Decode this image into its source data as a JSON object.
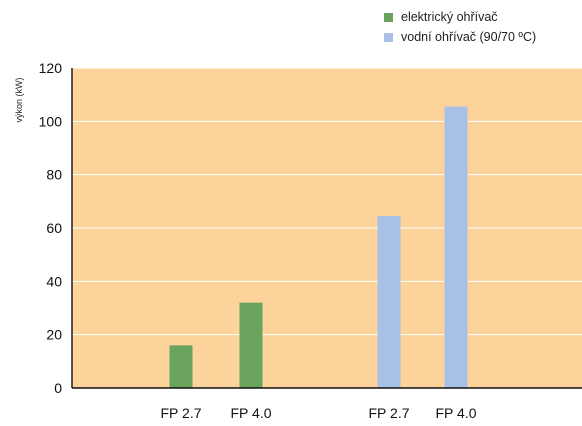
{
  "chart_data": {
    "type": "bar",
    "title": "",
    "ylabel": "výkon (kW)",
    "xlabel": "",
    "ylim": [
      0,
      120
    ],
    "yticks": [
      0,
      20,
      40,
      60,
      80,
      100,
      120
    ],
    "grid": true,
    "legend_position": "top-right",
    "background_color": "#fbd39b",
    "gridline_color": "#ffffff",
    "categories": [
      "FP 2.7",
      "FP 4.0",
      "FP 2.7",
      "FP 4.0"
    ],
    "series": [
      {
        "name": "elektrický ohřívač",
        "color": "#69a35d",
        "points": [
          {
            "category": "FP 2.7",
            "value": 16
          },
          {
            "category": "FP 4.0",
            "value": 32
          }
        ]
      },
      {
        "name": "vodní ohřívač (90/70 ºC)",
        "color": "#a8c0e6",
        "points": [
          {
            "category": "FP 2.7",
            "value": 64.5
          },
          {
            "category": "FP 4.0",
            "value": 105.5
          }
        ]
      }
    ]
  }
}
